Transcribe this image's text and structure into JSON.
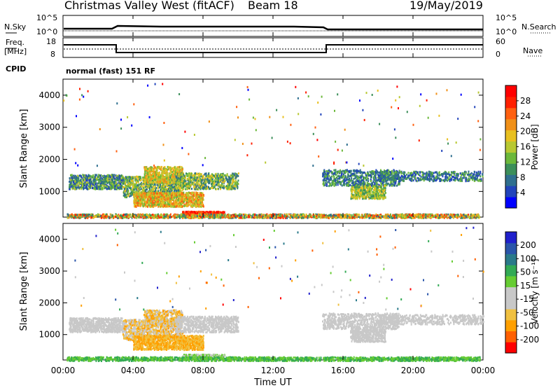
{
  "header": {
    "station": "Christmas Valley West (fitACF)",
    "beam": "Beam 18",
    "date": "19/May/2019"
  },
  "noise_panel": {
    "left_label": "N.Sky",
    "right_label": "N.Search",
    "tick_top": "10^5",
    "tick_bottom": "10^0"
  },
  "freq_panel": {
    "left_label_1": "Freq.",
    "left_label_2": "[MHz]",
    "right_label": "Nave",
    "left_ticks": [
      "18",
      "8"
    ],
    "right_ticks": [
      "60",
      "0"
    ]
  },
  "cpid": {
    "label": "CPID",
    "mode": "normal (fast) 151 RF"
  },
  "chart_data": [
    {
      "type": "heatmap",
      "name": "power",
      "ylabel": "Slant Range [km]",
      "ylim": [
        200,
        4500
      ],
      "yticks": [
        "1000",
        "2000",
        "3000",
        "4000"
      ],
      "colorbar": {
        "label": "Power [dB]",
        "ticks": [
          "4",
          "8",
          "12",
          "16",
          "20",
          "24",
          "28"
        ],
        "colors": [
          "#0000ff",
          "#2244bb",
          "#2f6f8f",
          "#3c8f5a",
          "#6cb83b",
          "#b8c832",
          "#e8c020",
          "#f09018",
          "#ff6010",
          "#ff2000",
          "#ff0000"
        ]
      }
    },
    {
      "type": "heatmap",
      "name": "velocity",
      "ylabel": "Slant Range [km]",
      "ylim": [
        200,
        4500
      ],
      "yticks": [
        "1000",
        "2000",
        "3000",
        "4000"
      ],
      "colorbar": {
        "label": "Velocity [m s⁻¹]",
        "ticks": [
          "-200",
          "-100",
          "-50",
          "-15",
          "15",
          "50",
          "100",
          "200"
        ],
        "colors": [
          "#ff0000",
          "#ff6000",
          "#ffa000",
          "#f0c040",
          "#c8c8c8",
          "#c8c8c8",
          "#66cc33",
          "#33aa55",
          "#2a7a8a",
          "#2a55aa",
          "#2020cc"
        ]
      }
    }
  ],
  "x_axis": {
    "label": "Time UT",
    "ticks": [
      "00:00",
      "04:00",
      "08:00",
      "12:00",
      "16:00",
      "20:00",
      "00:00"
    ]
  }
}
